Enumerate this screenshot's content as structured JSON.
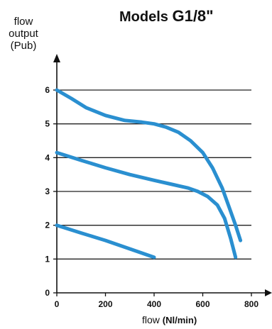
{
  "chart_data": {
    "type": "line",
    "title_prefix": "Models",
    "title_model": "G1/8\"",
    "ylabel_lines": [
      "flow",
      "output",
      "(Pub)"
    ],
    "xlabel_prefix": "flow",
    "xlabel_unit": "(Nl/min)",
    "xlim": [
      0,
      800
    ],
    "ylim": [
      0,
      6
    ],
    "xticks": [
      0,
      200,
      400,
      600,
      800
    ],
    "yticks": [
      0,
      1,
      2,
      3,
      4,
      5,
      6
    ],
    "grid": "horizontal",
    "line_color": "#2a8fd0",
    "series": [
      {
        "x": [
          0,
          60,
          120,
          200,
          280,
          350,
          400,
          450,
          500,
          550,
          600,
          640,
          680,
          710,
          735,
          755
        ],
        "y": [
          6.0,
          5.75,
          5.48,
          5.25,
          5.1,
          5.05,
          5.0,
          4.9,
          4.75,
          4.5,
          4.15,
          3.7,
          3.1,
          2.5,
          2.0,
          1.55
        ]
      },
      {
        "x": [
          0,
          100,
          200,
          300,
          400,
          480,
          540,
          580,
          620,
          660,
          690,
          715,
          735
        ],
        "y": [
          4.15,
          3.92,
          3.7,
          3.5,
          3.33,
          3.2,
          3.1,
          3.0,
          2.85,
          2.6,
          2.2,
          1.6,
          1.05
        ]
      },
      {
        "x": [
          0,
          100,
          200,
          300,
          400
        ],
        "y": [
          2.0,
          1.77,
          1.55,
          1.3,
          1.05
        ]
      }
    ]
  }
}
